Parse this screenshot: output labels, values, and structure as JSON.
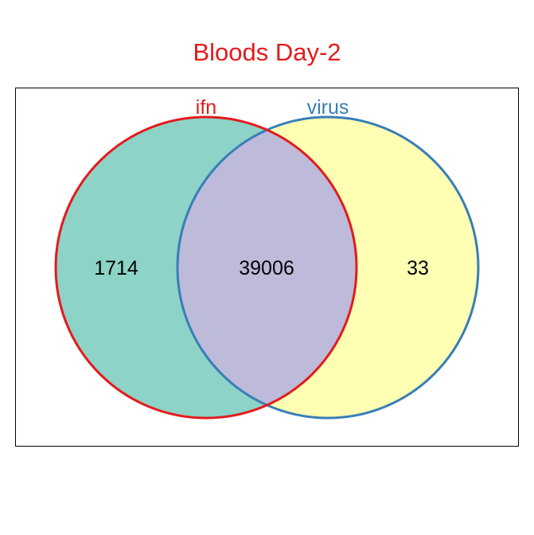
{
  "title": "Bloods Day-2",
  "colors": {
    "title": "#e41a1c",
    "set_a_fill": "#8dd3c7",
    "set_b_fill": "#ffffb3",
    "overlap_fill": "#bebada",
    "set_a_stroke": "#e41a1c",
    "set_b_stroke": "#377eb8",
    "frame": "#000000"
  },
  "sets": [
    {
      "name": "ifn"
    },
    {
      "name": "virus"
    }
  ],
  "regions": {
    "ifn_only": "1714",
    "both": "39006",
    "virus_only": "33"
  }
}
